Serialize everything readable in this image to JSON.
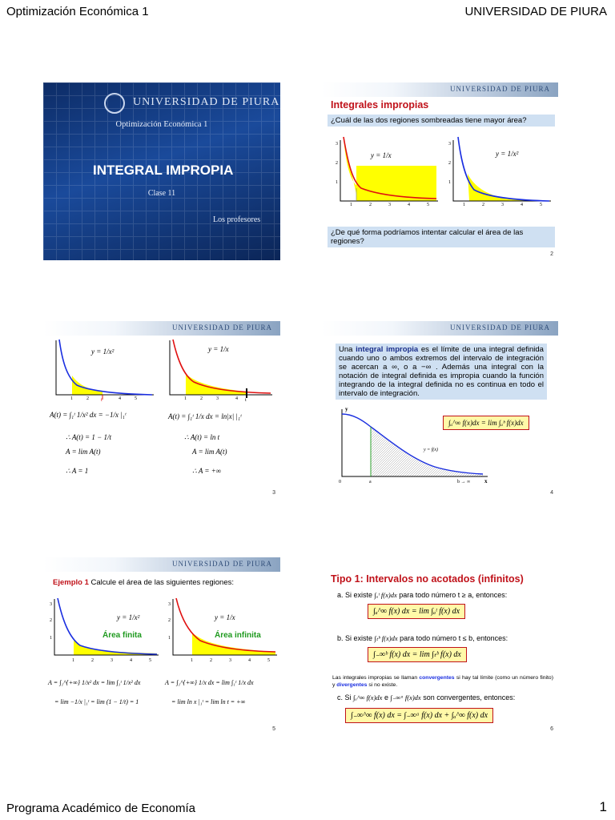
{
  "header": {
    "course": "Optimización Económica 1",
    "university": "UNIVERSIDAD DE PIURA"
  },
  "footer": {
    "program": "Programa Académico de Economía",
    "page": "1"
  },
  "banner_text": "UNIVERSIDAD DE PIURA",
  "slide1": {
    "logo": "UNIVERSIDAD DE PIURA",
    "course": "Optimización Económica 1",
    "title": "INTEGRAL IMPROPIA",
    "clase": "Clase 11",
    "authors": "Los profesores"
  },
  "slide2": {
    "title": "Integrales impropias",
    "question1": "¿Cuál de las dos regiones sombreadas tiene mayor área?",
    "label_left": "y = 1/x",
    "label_right": "y = 1/x²",
    "question2": "¿De qué forma podríamos intentar calcular el área de las regiones?",
    "number": "2"
  },
  "slide3": {
    "label_left": "y = 1/x²",
    "label_right": "y = 1/x",
    "eq_l1": "A(t) = ∫₁ᵗ 1/x² dx = −1/x |₁ᵗ",
    "eq_l2": "∴ A(t) = 1 − 1/t",
    "eq_l3": "A = lim A(t)",
    "eq_l4": "∴ A = 1",
    "eq_r1": "A(t) = ∫₁ᵗ 1/x dx = ln|x| |₁ᵗ",
    "eq_r2": "∴ A(t) = ln t",
    "eq_r3": "A = lim A(t)",
    "eq_r4": "∴ A = +∞",
    "number": "3"
  },
  "slide4": {
    "text_pre": "Una ",
    "text_bold": "integral impropia",
    "text_post": " es el límite de una integral definida cuando uno o ambos extremos del intervalo de integración se acercan a ∞, o a −∞ . Además una integral con la notación de integral definida es impropia cuando la función integrando de la integral definida no es continua en todo el intervalo de integración.",
    "formula": "∫ₐ^∞ f(x)dx = lim ∫ₐᵇ f(x)dx",
    "curve_label": "y = f(x)",
    "number": "4"
  },
  "slide5": {
    "example_label": "Ejemplo 1",
    "example_text": " Calcule el área de las siguientes regiones:",
    "label_left": "y = 1/x²",
    "label_right": "y = 1/x",
    "finite": "Área finita",
    "infinite": "Área infinita",
    "eq_l1": "A = ∫₁^{+∞} 1/x² dx = lim ∫₁ᵗ 1/x² dx",
    "eq_l2": "= lim −1/x |₁ᵗ = lim (1 − 1/t) = 1",
    "eq_r1": "A = ∫₁^{+∞} 1/x dx = lim ∫₁ᵗ 1/x dx",
    "eq_r2": "= lim ln x |₁ᵗ = lim ln t = +∞",
    "number": "5"
  },
  "slide6": {
    "title": "Tipo 1: Intervalos no acotados (infinitos)",
    "a_pre": "a.  Si existe",
    "a_post": "para todo número t ≥ a, entonces:",
    "a_formula": "∫ₐ^∞ f(x) dx = lim ∫ₐᵗ f(x) dx",
    "b_pre": "b.  Si existe",
    "b_post": "para todo número t ≤ b, entonces:",
    "b_formula": "∫₋∞ᵇ f(x) dx = lim ∫ₜᵇ f(x) dx",
    "note_pre": "Las integrales impropias se llaman ",
    "note_conv": "convergentes",
    "note_mid": " si hay tal límite (como un número finito) y ",
    "note_div": "divergentes",
    "note_post": " si no existe.",
    "c_pre": "c.  Si",
    "c_mid": "e",
    "c_post": "son convergentes, entonces:",
    "c_formula": "∫₋∞^∞ f(x) dx = ∫₋∞ᵃ f(x) dx + ∫ₐ^∞ f(x) dx",
    "number": "6"
  }
}
